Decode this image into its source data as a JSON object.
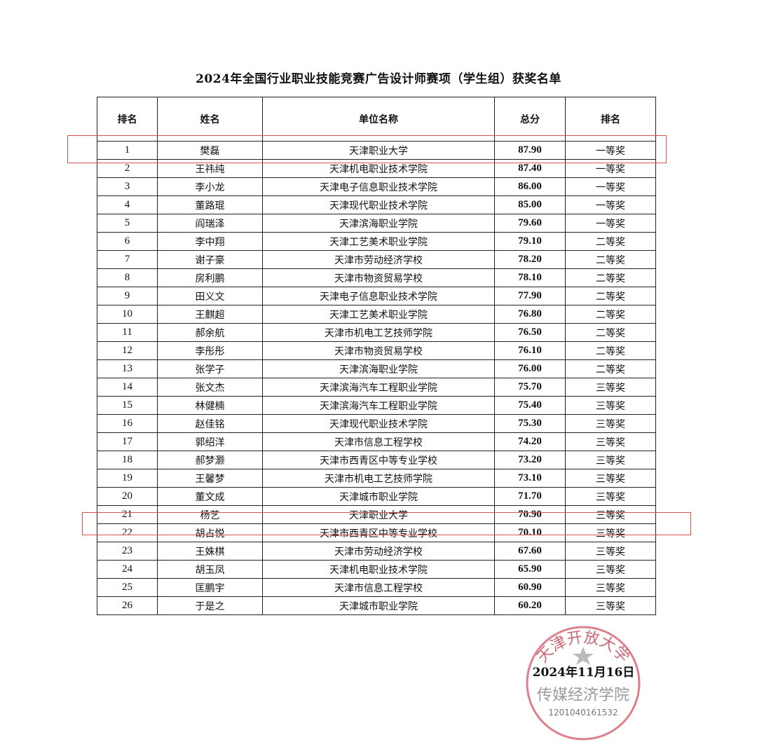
{
  "title": "2024年全国行业职业技能竞赛广告设计师赛项（学生组）获奖名单",
  "headers": [
    "排名",
    "姓名",
    "单位名称",
    "总分",
    "排名"
  ],
  "rows": [
    {
      "rank": "1",
      "name": "樊磊",
      "unit": "天津职业大学",
      "score": "87.90",
      "award": "一等奖",
      "highlight": true
    },
    {
      "rank": "2",
      "name": "王祎纯",
      "unit": "天津机电职业技术学院",
      "score": "87.40",
      "award": "一等奖"
    },
    {
      "rank": "3",
      "name": "李小龙",
      "unit": "天津电子信息职业技术学院",
      "score": "86.00",
      "award": "一等奖"
    },
    {
      "rank": "4",
      "name": "董路琨",
      "unit": "天津现代职业技术学院",
      "score": "85.00",
      "award": "一等奖"
    },
    {
      "rank": "5",
      "name": "阎瑞泽",
      "unit": "天津滨海职业学院",
      "score": "79.60",
      "award": "一等奖"
    },
    {
      "rank": "6",
      "name": "李中翔",
      "unit": "天津工艺美术职业学院",
      "score": "79.10",
      "award": "二等奖"
    },
    {
      "rank": "7",
      "name": "谢子豪",
      "unit": "天津市劳动经济学校",
      "score": "78.20",
      "award": "二等奖"
    },
    {
      "rank": "8",
      "name": "房利鹏",
      "unit": "天津市物资贸易学校",
      "score": "78.10",
      "award": "二等奖"
    },
    {
      "rank": "9",
      "name": "田义文",
      "unit": "天津电子信息职业技术学院",
      "score": "77.90",
      "award": "二等奖"
    },
    {
      "rank": "10",
      "name": "王麒超",
      "unit": "天津工艺美术职业学院",
      "score": "76.80",
      "award": "二等奖"
    },
    {
      "rank": "11",
      "name": "郝余航",
      "unit": "天津市机电工艺技师学院",
      "score": "76.50",
      "award": "二等奖"
    },
    {
      "rank": "12",
      "name": "李彤彤",
      "unit": "天津市物资贸易学校",
      "score": "76.10",
      "award": "二等奖"
    },
    {
      "rank": "13",
      "name": "张学子",
      "unit": "天津滨海职业学院",
      "score": "76.00",
      "award": "二等奖"
    },
    {
      "rank": "14",
      "name": "张文杰",
      "unit": "天津滨海汽车工程职业学院",
      "score": "75.70",
      "award": "三等奖"
    },
    {
      "rank": "15",
      "name": "林健楠",
      "unit": "天津滨海汽车工程职业学院",
      "score": "75.40",
      "award": "三等奖"
    },
    {
      "rank": "16",
      "name": "赵佳铭",
      "unit": "天津现代职业技术学院",
      "score": "75.30",
      "award": "三等奖"
    },
    {
      "rank": "17",
      "name": "郭绍洋",
      "unit": "天津市信息工程学校",
      "score": "74.20",
      "award": "三等奖"
    },
    {
      "rank": "18",
      "name": "郝梦灏",
      "unit": "天津市西青区中等专业学校",
      "score": "73.20",
      "award": "三等奖"
    },
    {
      "rank": "19",
      "name": "王馨梦",
      "unit": "天津市机电工艺技师学院",
      "score": "73.10",
      "award": "三等奖"
    },
    {
      "rank": "20",
      "name": "董文成",
      "unit": "天津城市职业学院",
      "score": "71.70",
      "award": "三等奖"
    },
    {
      "rank": "21",
      "name": "杨艺",
      "unit": "天津职业大学",
      "score": "70.90",
      "award": "三等奖",
      "highlight": true
    },
    {
      "rank": "22",
      "name": "胡占悦",
      "unit": "天津市西青区中等专业学校",
      "score": "70.10",
      "award": "三等奖"
    },
    {
      "rank": "23",
      "name": "王姝棋",
      "unit": "天津市劳动经济学校",
      "score": "67.60",
      "award": "三等奖"
    },
    {
      "rank": "24",
      "name": "胡玉凤",
      "unit": "天津机电职业技术学院",
      "score": "65.90",
      "award": "三等奖"
    },
    {
      "rank": "25",
      "name": "匡鹏宇",
      "unit": "天津市信息工程学校",
      "score": "60.90",
      "award": "三等奖"
    },
    {
      "rank": "26",
      "name": "于是之",
      "unit": "天津城市职业学院",
      "score": "60.20",
      "award": "三等奖"
    }
  ],
  "date": "2024年11月16日",
  "stamp": {
    "outer": "天津开放大学",
    "inner": "传媒经济学院",
    "code": "1201040161532",
    "color": "#d4606e"
  },
  "highlight_color": "#d9534f"
}
